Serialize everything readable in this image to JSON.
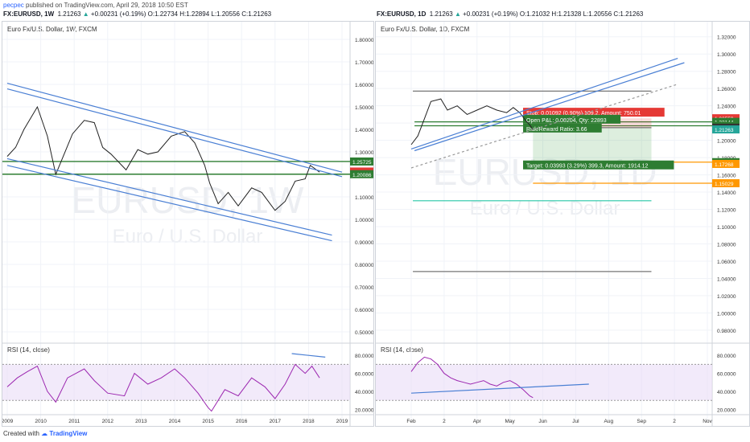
{
  "publish": {
    "user": "pecpec",
    "text": " published on TradingView.com, April 29, 2018 10:50 EST"
  },
  "footer": {
    "label": "Created with",
    "brand": "TradingView",
    "logo_icon": "tradingview-logo-icon"
  },
  "colors": {
    "channel": "#4a7fd4",
    "support": "#2e7d32",
    "rsi": "#9c27b0",
    "rsi_band": "#eadcf7",
    "stop": "#e53935",
    "target": "#43a047",
    "orange": "#ff9800",
    "teal": "#26c6a6",
    "gray": "#777777",
    "price_up": "#26a69a"
  },
  "left": {
    "header": {
      "symbol": "FX:EURUSD, 1W",
      "price": "1.21263",
      "change": "+0.00231 (+0.19%)",
      "o": "1.22734",
      "h": "1.22894",
      "l": "1.20556",
      "c": "1.21263"
    },
    "title": "Euro Fx/U.S. Dollar, 1W, FXCM",
    "watermark": "EURUSD, 1W",
    "watermark_sub": "Euro / U.S. Dollar",
    "rsi_label": "RSI (14, close)",
    "price_labels": [
      {
        "text": "1.25725",
        "value": 1.25725,
        "color": "#2e7d32"
      },
      {
        "text": "1.21263",
        "value": 1.21263,
        "color": "#e53935"
      },
      {
        "text": "1.20086",
        "value": 1.20086,
        "color": "#2e7d32"
      }
    ]
  },
  "right": {
    "header": {
      "symbol": "FX:EURUSD, 1D",
      "price": "1.21263",
      "change": "+0.00231 (+0.19%)",
      "o": "1.21032",
      "h": "1.21328",
      "l": "1.20556",
      "c": "1.21263"
    },
    "title": "Euro Fx/U.S. Dollar, 1D, FXCM",
    "watermark": "EURUSD, 1D",
    "watermark_sub": "Euro / U.S. Dollar",
    "rsi_label": "RSI (14, close)",
    "stop_text": "Stop: 0.01092 (0.90%) 109.2, Amount: 750.01",
    "pnl_text": "Open P&L: 0.00204, Qty: 22893",
    "rr_text": "Risk/Reward Ratio: 3.66",
    "target_text": "Target: 0.03993 (3.29%) 399.3, Amount: 1914.12",
    "price_labels": [
      {
        "text": "1.22559",
        "value": 1.22559,
        "color": "#e53935"
      },
      {
        "text": "1.22144",
        "value": 1.22144,
        "color": "#2e7d32"
      },
      {
        "text": "1.21684",
        "value": 1.21684,
        "color": "#2e7d32"
      },
      {
        "text": "1.21467",
        "value": 1.21467,
        "color": "#333333"
      },
      {
        "text": "1.21263",
        "value": 1.21263,
        "color": "#26a69a"
      },
      {
        "text": "1.17474",
        "value": 1.17474,
        "color": "#2e7d32"
      },
      {
        "text": "1.17268",
        "value": 1.17268,
        "color": "#ff9800"
      },
      {
        "text": "1.15029",
        "value": 1.15029,
        "color": "#ff9800"
      }
    ]
  },
  "chart_data": [
    {
      "type": "line",
      "title": "Euro Fx/U.S. Dollar, 1W, FXCM",
      "xlabel": "",
      "ylabel": "",
      "x_ticks": [
        "2009",
        "2010",
        "2011",
        "2012",
        "2013",
        "2014",
        "2015",
        "2016",
        "2017",
        "2018",
        "2019"
      ],
      "y_ticks": [
        "0.50000",
        "0.60000",
        "0.70000",
        "0.80000",
        "0.90000",
        "1.00000",
        "1.10000",
        "1.20000",
        "1.30000",
        "1.40000",
        "1.50000",
        "1.60000",
        "1.70000",
        "1.80000"
      ],
      "ylim": [
        0.45,
        1.85
      ],
      "series": [
        {
          "x": [
            2009.0,
            2009.25,
            2009.5,
            2009.9,
            2010.2,
            2010.45,
            2010.7,
            2010.95,
            2011.3,
            2011.6,
            2011.85,
            2012.1,
            2012.55,
            2012.9,
            2013.2,
            2013.5,
            2013.9,
            2014.3,
            2014.6,
            2014.9,
            2015.05,
            2015.3,
            2015.6,
            2015.9,
            2016.3,
            2016.6,
            2016.9,
            2017.0,
            2017.3,
            2017.6,
            2017.9,
            2018.05,
            2018.15,
            2018.33
          ],
          "values": [
            1.28,
            1.32,
            1.4,
            1.5,
            1.37,
            1.2,
            1.29,
            1.38,
            1.44,
            1.43,
            1.32,
            1.29,
            1.22,
            1.31,
            1.29,
            1.3,
            1.37,
            1.39,
            1.34,
            1.24,
            1.16,
            1.07,
            1.12,
            1.06,
            1.14,
            1.12,
            1.06,
            1.04,
            1.08,
            1.17,
            1.18,
            1.24,
            1.23,
            1.21
          ]
        }
      ],
      "trendlines": [
        {
          "name": "channel-top",
          "x": [
            2009.0,
            2019.0
          ],
          "values": [
            1.605,
            1.21
          ]
        },
        {
          "name": "channel-mid",
          "x": [
            2009.0,
            2019.0
          ],
          "values": [
            1.58,
            1.19
          ]
        },
        {
          "name": "channel-bottom-1",
          "x": [
            2009.0,
            2018.7
          ],
          "values": [
            1.27,
            0.93
          ]
        },
        {
          "name": "channel-bottom-2",
          "x": [
            2009.0,
            2018.7
          ],
          "values": [
            1.24,
            0.905
          ]
        }
      ],
      "hlines": [
        1.25725,
        1.20086
      ]
    },
    {
      "type": "line",
      "title": "RSI (14, close)",
      "y_ticks": [
        "20.0000",
        "40.0000",
        "60.0000",
        "80.0000"
      ],
      "ylim": [
        15,
        90
      ],
      "bands": [
        30,
        70
      ],
      "x": [
        2009.0,
        2009.3,
        2009.6,
        2009.9,
        2010.2,
        2010.45,
        2010.8,
        2011.3,
        2011.6,
        2012.0,
        2012.5,
        2012.8,
        2013.2,
        2013.6,
        2014.0,
        2014.3,
        2014.7,
        2015.0,
        2015.1,
        2015.5,
        2015.9,
        2016.3,
        2016.7,
        2017.0,
        2017.3,
        2017.6,
        2017.9,
        2018.1,
        2018.33
      ],
      "values": [
        45,
        55,
        62,
        68,
        40,
        28,
        55,
        65,
        52,
        38,
        35,
        60,
        48,
        55,
        65,
        55,
        38,
        22,
        18,
        42,
        35,
        55,
        45,
        32,
        48,
        70,
        60,
        68,
        55
      ],
      "trendline": {
        "x": [
          2017.5,
          2018.5
        ],
        "values": [
          82,
          78
        ]
      }
    },
    {
      "type": "line",
      "title": "Euro Fx/U.S. Dollar, 1D, FXCM",
      "x_ticks": [
        "Feb",
        "2",
        "Apr",
        "May",
        "Jun",
        "Jul",
        "Aug",
        "Sep",
        "2",
        "Nov"
      ],
      "y_ticks": [
        "0.98000",
        "1.00000",
        "1.02000",
        "1.04000",
        "1.06000",
        "1.08000",
        "1.10000",
        "1.12000",
        "1.14000",
        "1.16000",
        "1.18000",
        "1.20000",
        "1.22000",
        "1.24000",
        "1.26000",
        "1.28000",
        "1.30000",
        "1.32000"
      ],
      "ylim": [
        0.965,
        1.33
      ],
      "series": [
        {
          "x": [
            1.0,
            1.2,
            1.4,
            1.6,
            1.9,
            2.1,
            2.4,
            2.7,
            3.0,
            3.3,
            3.6,
            3.9,
            4.1,
            4.3,
            4.5,
            4.6,
            4.7
          ],
          "values": [
            1.195,
            1.205,
            1.225,
            1.245,
            1.248,
            1.235,
            1.24,
            1.23,
            1.235,
            1.24,
            1.235,
            1.232,
            1.238,
            1.232,
            1.222,
            1.218,
            1.2126
          ]
        }
      ],
      "trendlines": [
        {
          "name": "channel-upper",
          "x": [
            1.0,
            9.1
          ],
          "values": [
            1.19,
            1.295
          ]
        },
        {
          "name": "channel-lower",
          "x": [
            1.1,
            9.3
          ],
          "values": [
            1.188,
            1.29
          ]
        },
        {
          "name": "projection",
          "x": [
            1.0,
            9.1
          ],
          "values": [
            1.168,
            1.265
          ]
        }
      ],
      "hlines": [
        {
          "value": 1.257,
          "color": "gray"
        },
        {
          "value": 1.22144,
          "color": "green"
        },
        {
          "value": 1.21684,
          "color": "green"
        },
        {
          "value": 1.17474,
          "color": "orange"
        },
        {
          "value": 1.15029,
          "color": "orange"
        },
        {
          "value": 1.13,
          "color": "teal"
        },
        {
          "value": 1.048,
          "color": "gray"
        }
      ],
      "position": {
        "entry": 1.21467,
        "stop": 1.22559,
        "target": 1.17474,
        "qty": 22893
      }
    },
    {
      "type": "line",
      "title": "RSI (14, close)",
      "y_ticks": [
        "20.0000",
        "40.0000",
        "60.0000",
        "80.0000"
      ],
      "ylim": [
        15,
        90
      ],
      "bands": [
        30,
        70
      ],
      "x": [
        1.0,
        1.2,
        1.4,
        1.6,
        1.8,
        2.0,
        2.2,
        2.4,
        2.6,
        2.8,
        3.0,
        3.2,
        3.4,
        3.6,
        3.8,
        4.0,
        4.2,
        4.4,
        4.6,
        4.7
      ],
      "values": [
        62,
        72,
        78,
        76,
        70,
        60,
        55,
        52,
        50,
        48,
        50,
        52,
        48,
        46,
        50,
        52,
        48,
        42,
        35,
        33
      ],
      "trendline": {
        "x": [
          1.0,
          6.4
        ],
        "values": [
          38,
          48
        ]
      }
    }
  ]
}
